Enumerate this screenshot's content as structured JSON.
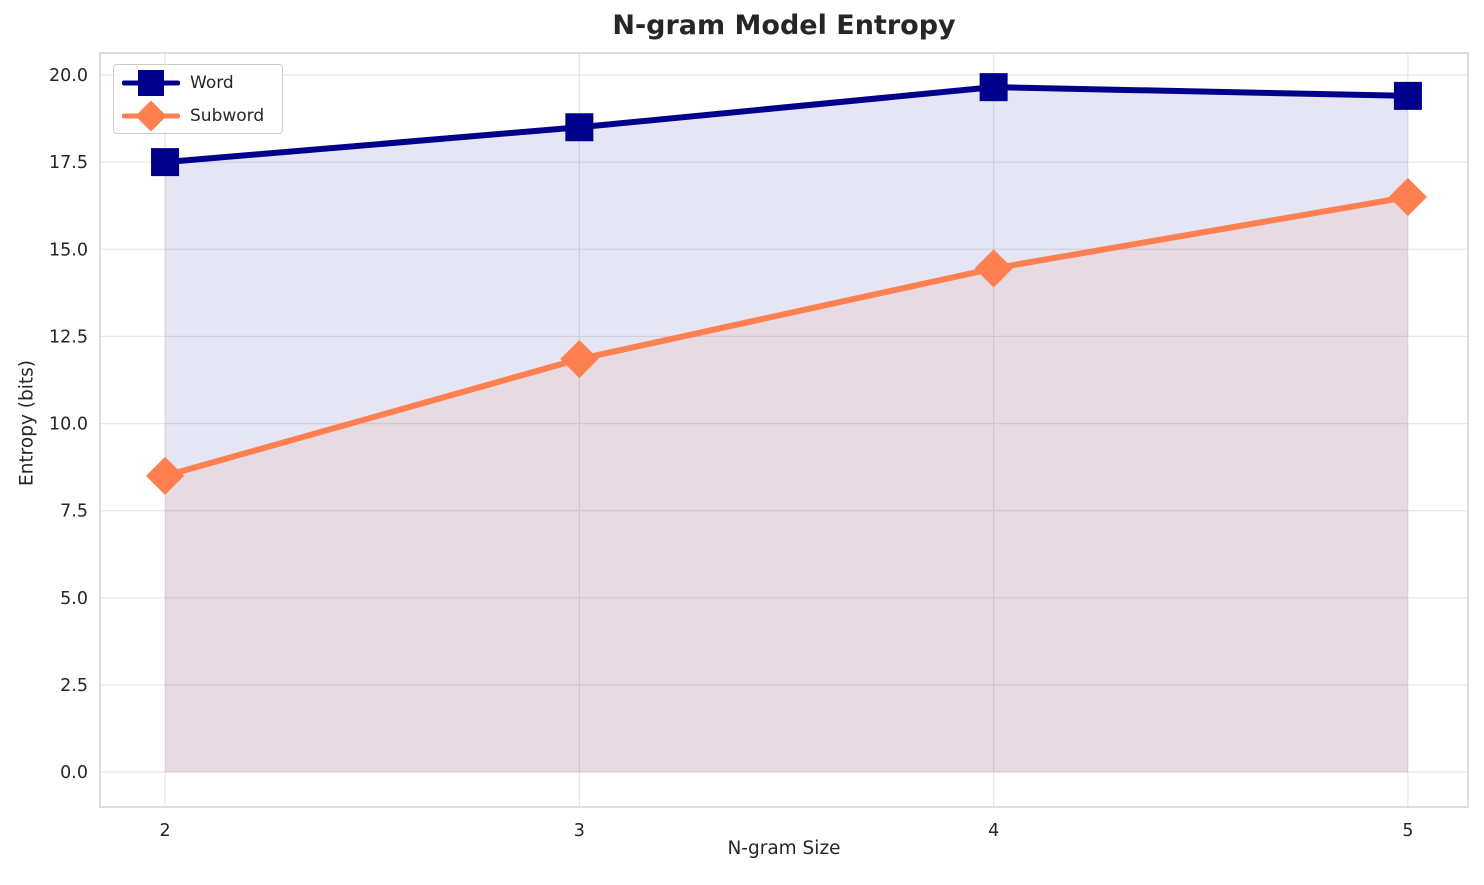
{
  "chart_data": {
    "type": "line",
    "title": "N-gram Model Entropy",
    "xlabel": "N-gram Size",
    "ylabel": "Entropy (bits)",
    "x": [
      2,
      3,
      4,
      5
    ],
    "series": [
      {
        "name": "Word",
        "values": [
          17.5,
          18.5,
          19.65,
          19.4
        ],
        "color": "#00008B",
        "marker": "square",
        "fill_alpha": 0.1,
        "line_width": 6
      },
      {
        "name": "Subword",
        "values": [
          8.5,
          11.85,
          14.45,
          16.5
        ],
        "color": "#FF7F50",
        "marker": "diamond",
        "fill_alpha": 0.1,
        "line_width": 6
      }
    ],
    "xticks": [
      2,
      3,
      4,
      5
    ],
    "xtick_labels": [
      "2",
      "3",
      "4",
      "5"
    ],
    "yticks": [
      0,
      2.5,
      5,
      7.5,
      10,
      12.5,
      15,
      17.5,
      20
    ],
    "ytick_labels": [
      "0.0",
      "2.5",
      "5.0",
      "7.5",
      "10.0",
      "12.5",
      "15.0",
      "17.5",
      "20.0"
    ],
    "xlim": [
      1.843,
      5.145
    ],
    "ylim": [
      -1.0,
      20.63
    ],
    "grid": true,
    "area_fill": true,
    "legend_position": "upper left",
    "grid_color": "#E7E7E7",
    "spine_color": "#D4D4D4",
    "text_color": "#262626",
    "background_color": "#ffffff"
  }
}
